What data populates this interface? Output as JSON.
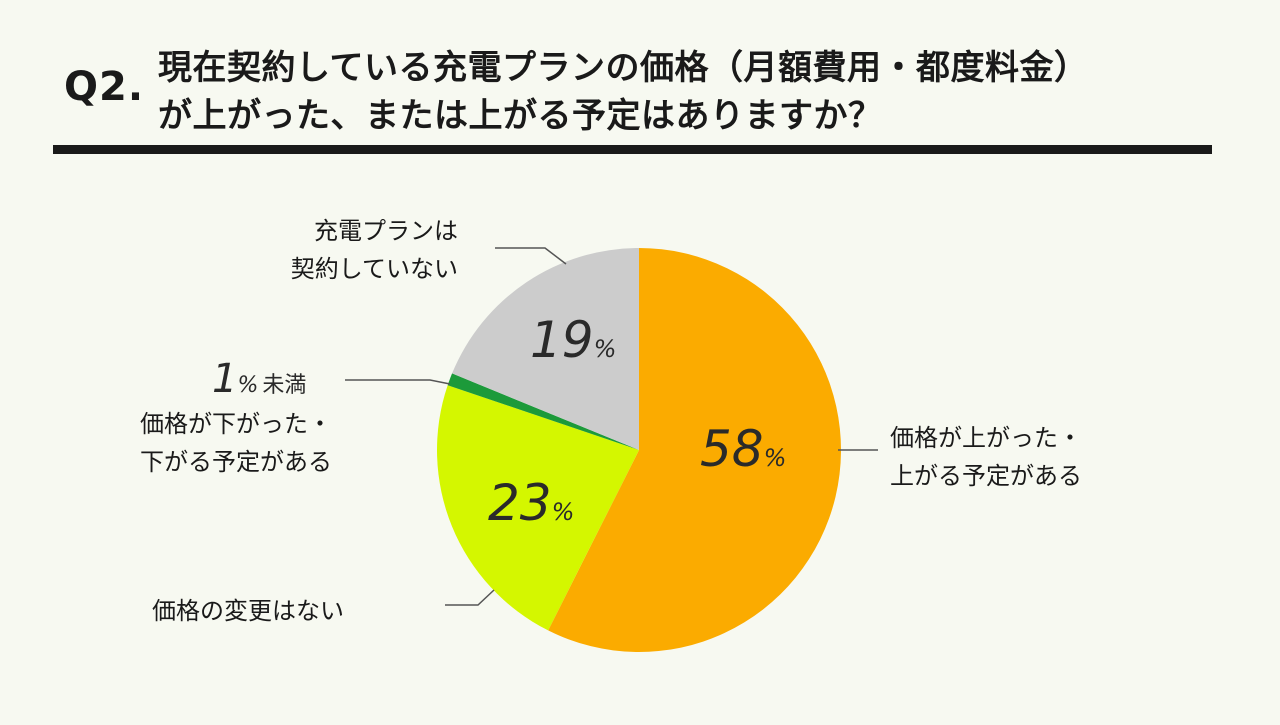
{
  "header": {
    "q_number": "Q2.",
    "line1": "現在契約している充電プランの価格（月額費用・都度料金）",
    "line2": "が上がった、または上がる予定はありますか？"
  },
  "chart_data": {
    "type": "pie",
    "title": "現在契約している充電プランの価格（月額費用・都度料金）が上がった、または上がる予定はありますか？",
    "unit": "%",
    "slices": [
      {
        "label": "価格が上がった・上がる予定がある",
        "value": 58,
        "color": "#fbab00"
      },
      {
        "label": "価格の変更はない",
        "value": 23,
        "color": "#d4f700"
      },
      {
        "label": "価格が下がった・下がる予定がある",
        "value": 1,
        "value_text": "1％未満",
        "color": "#1c9a3a"
      },
      {
        "label": "充電プランは契約していない",
        "value": 19,
        "color": "#cccccc"
      }
    ]
  },
  "labels": {
    "up_l1": "価格が上がった・",
    "up_l2": "上がる予定がある",
    "nochange": "価格の変更はない",
    "down_l1": "価格が下がった・",
    "down_l2": "下がる予定がある",
    "none_l1": "充電プランは",
    "none_l2": "契約していない"
  },
  "pct": {
    "up": "58",
    "nochange": "23",
    "none": "19",
    "down": "1",
    "symbol": "%",
    "down_note": "未満"
  }
}
